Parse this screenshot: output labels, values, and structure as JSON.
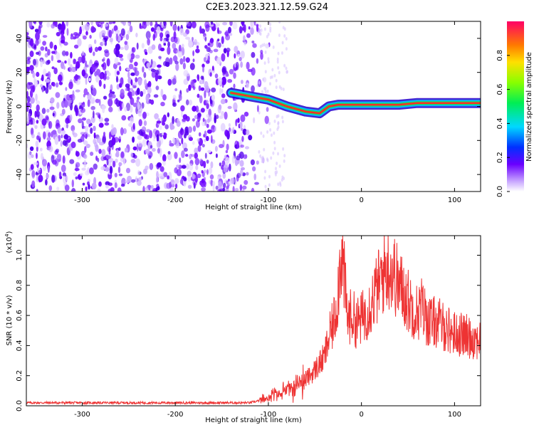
{
  "title": "C2E3.2023.321.12.59.G24",
  "chart_data": [
    {
      "type": "heatmap",
      "xlabel": "Height of straight line (km)",
      "ylabel": "Frequency (Hz)",
      "xlim": [
        -360,
        128
      ],
      "ylim": [
        -50,
        50
      ],
      "xticks": [
        -300,
        -200,
        -100,
        0,
        100
      ],
      "yticks": [
        -40,
        -20,
        0,
        20,
        40
      ],
      "noise_region_x": [
        -360,
        -110
      ],
      "signal_track": {
        "x": [
          -140,
          -120,
          -100,
          -80,
          -60,
          -45,
          -35,
          -25,
          -15,
          0,
          20,
          40,
          60,
          80,
          100,
          128
        ],
        "freq": [
          8,
          6,
          4,
          0,
          -3,
          -4,
          0,
          1,
          1,
          1,
          1,
          1,
          2,
          2,
          2,
          2
        ]
      },
      "colorbar": {
        "label": "Normalized spectral amplitude",
        "range": [
          0,
          1
        ],
        "ticks": [
          "0.0",
          "0.2",
          "0.4",
          "0.6",
          "0.8"
        ]
      }
    },
    {
      "type": "line",
      "xlabel": "Height of straight line (km)",
      "ylabel": "SNR (10 * v/v)",
      "yscale_note": "(x10",
      "yscale_exp": "4",
      "xlim": [
        -360,
        128
      ],
      "ylim": [
        0,
        1.13
      ],
      "xticks": [
        -300,
        -200,
        -100,
        0,
        100
      ],
      "yticks": [
        "0.0",
        "0.2",
        "0.4",
        "0.6",
        "0.8",
        "1.0"
      ],
      "series": [
        {
          "name": "SNR",
          "color": "#ee3333",
          "x": [
            -360,
            -320,
            -300,
            -280,
            -200,
            -120,
            -105,
            -95,
            -85,
            -75,
            -65,
            -55,
            -45,
            -40,
            -35,
            -30,
            -27,
            -25,
            -22,
            -20,
            -15,
            -10,
            -5,
            0,
            5,
            10,
            15,
            20,
            25,
            30,
            35,
            40,
            45,
            50,
            55,
            60,
            65,
            70,
            75,
            80,
            90,
            100,
            110,
            120,
            128
          ],
          "y": [
            0.02,
            0.02,
            0.02,
            0.02,
            0.02,
            0.02,
            0.04,
            0.07,
            0.09,
            0.12,
            0.16,
            0.2,
            0.28,
            0.32,
            0.45,
            0.55,
            0.65,
            0.78,
            1.05,
            0.95,
            0.58,
            0.6,
            0.55,
            0.58,
            0.62,
            0.68,
            0.75,
            0.82,
            0.9,
            0.92,
            0.88,
            0.8,
            0.76,
            0.7,
            0.65,
            0.62,
            0.66,
            0.58,
            0.55,
            0.56,
            0.52,
            0.48,
            0.47,
            0.45,
            0.44
          ]
        }
      ]
    }
  ]
}
